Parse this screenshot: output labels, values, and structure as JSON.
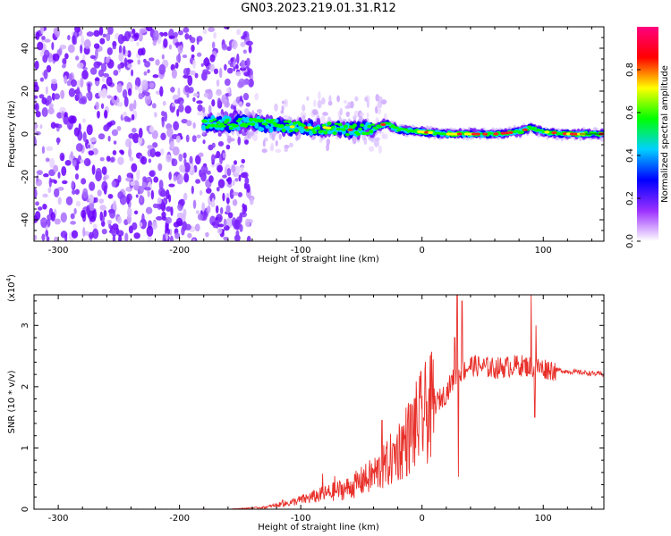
{
  "title": "GN03.2023.219.01.31.R12",
  "chart_data": [
    {
      "type": "heatmap",
      "xlabel": "Height of straight line (km)",
      "ylabel": "Frequency (Hz)",
      "xlim": [
        -320,
        150
      ],
      "ylim": [
        -50,
        50
      ],
      "xticks": [
        "-300",
        "-200",
        "-100",
        "0",
        "100"
      ],
      "yticks": [
        "-40",
        "-20",
        "0",
        "20",
        "40"
      ],
      "colorbar": {
        "label": "Normalized spectral amplitude",
        "range": [
          0,
          1
        ],
        "ticks": [
          "0.0",
          "0.2",
          "0.4",
          "0.6",
          "0.8"
        ],
        "colors": [
          "#ffffff",
          "#9b30ff",
          "#0000ff",
          "#00d0ff",
          "#00ff00",
          "#ffff00",
          "#ff0000",
          "#ff0080"
        ]
      },
      "ridge": {
        "x": [
          -180,
          -160,
          -140,
          -120,
          -100,
          -80,
          -60,
          -40,
          -30,
          -20,
          0,
          20,
          40,
          60,
          80,
          90,
          100,
          120,
          150
        ],
        "y": [
          5,
          5,
          5,
          4,
          3,
          3,
          2,
          2,
          5,
          2,
          1,
          0,
          0,
          0,
          1,
          3,
          1,
          0,
          0
        ]
      },
      "noise_region": [
        -320,
        -150
      ]
    },
    {
      "type": "line",
      "xlabel": "Height of straight line (km)",
      "ylabel": "SNR (10 * v/v)",
      "yscale_label": "(x10",
      "yscale_exp": "4",
      "xlim": [
        -320,
        150
      ],
      "ylim": [
        0,
        35000
      ],
      "xticks": [
        "-300",
        "-200",
        "-100",
        "0",
        "100"
      ],
      "yticks": [
        "0",
        "1",
        "2",
        "3"
      ],
      "color": "#e8302a",
      "envelope": {
        "x": [
          -320,
          -160,
          -130,
          -110,
          -100,
          -80,
          -60,
          -45,
          -30,
          -20,
          -10,
          0,
          10,
          20,
          25,
          30,
          40,
          60,
          80,
          100,
          120,
          150
        ],
        "y": [
          0,
          0,
          300,
          1000,
          1500,
          2500,
          3500,
          5000,
          7000,
          9500,
          12000,
          15000,
          17000,
          19000,
          21000,
          22000,
          23500,
          23000,
          23500,
          23000,
          22500,
          22000
        ]
      },
      "spikes": [
        {
          "x": -115,
          "y": 1500
        },
        {
          "x": -82,
          "y": 5800
        },
        {
          "x": -72,
          "y": 5400
        },
        {
          "x": -48,
          "y": 6500
        },
        {
          "x": -33,
          "y": 14500
        },
        {
          "x": -24,
          "y": 10800
        },
        {
          "x": 27,
          "y": 28000
        },
        {
          "x": 29,
          "y": 35000
        },
        {
          "x": 30,
          "y": 5300
        },
        {
          "x": 33,
          "y": 34000
        },
        {
          "x": 90,
          "y": 35000
        },
        {
          "x": 94,
          "y": 30000
        },
        {
          "x": 93,
          "y": 15000
        }
      ]
    }
  ]
}
